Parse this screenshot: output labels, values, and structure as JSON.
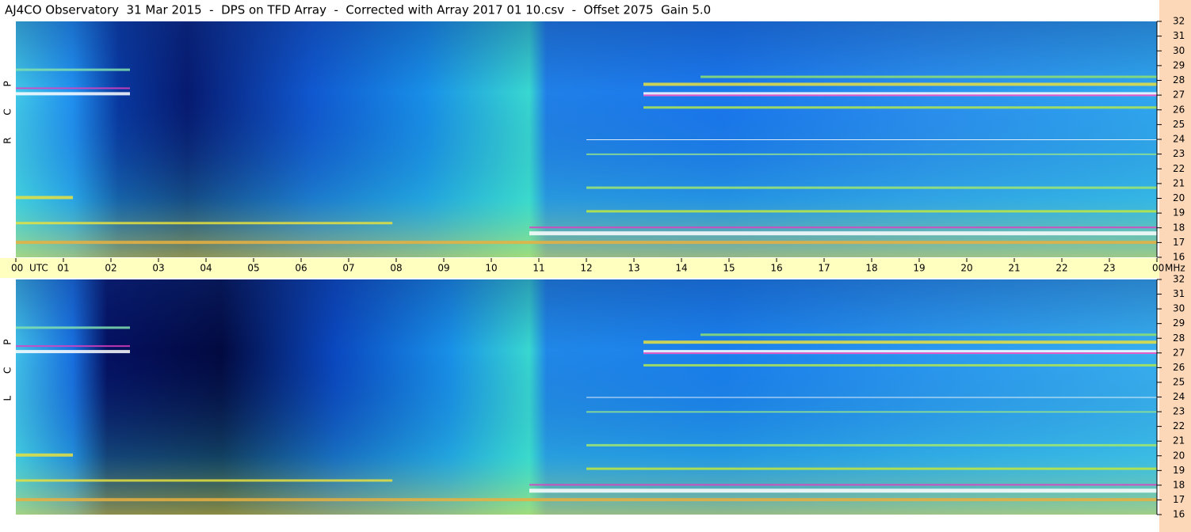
{
  "chart_data": {
    "type": "spectrogram",
    "title": "AJ4CO Observatory  31 Mar 2015  -  DPS on TFD Array  -  Corrected with Array 2017 01 10.csv  -  Offset 2075  Gain 5.0",
    "x_unit": "UTC",
    "y_unit": "MHz",
    "panels": [
      {
        "label": "R C P"
      },
      {
        "label": "L C P"
      }
    ],
    "xlim": [
      0,
      24
    ],
    "xticks": [
      {
        "value": 0,
        "label": "00"
      },
      {
        "value": 1,
        "label": "01"
      },
      {
        "value": 2,
        "label": "02"
      },
      {
        "value": 3,
        "label": "03"
      },
      {
        "value": 4,
        "label": "04"
      },
      {
        "value": 5,
        "label": "05"
      },
      {
        "value": 6,
        "label": "06"
      },
      {
        "value": 7,
        "label": "07"
      },
      {
        "value": 8,
        "label": "08"
      },
      {
        "value": 9,
        "label": "09"
      },
      10,
      11,
      12,
      13,
      14,
      15,
      16,
      17,
      18,
      19,
      20,
      21,
      22,
      23,
      {
        "value": 24,
        "label": "00"
      }
    ],
    "ylim": [
      16,
      32
    ],
    "yticks": [
      16,
      17,
      18,
      19,
      20,
      21,
      22,
      23,
      24,
      25,
      26,
      27,
      28,
      29,
      30,
      31,
      32
    ]
  }
}
